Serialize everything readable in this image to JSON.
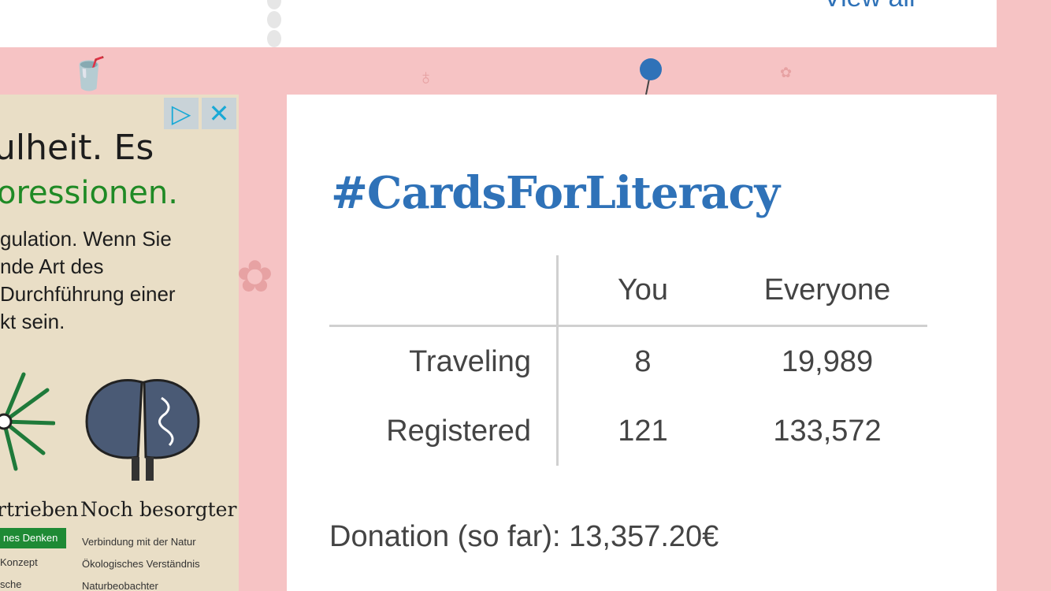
{
  "top_card": {
    "view_all_label": "View all"
  },
  "ad": {
    "headline_1": "ulheit. Es",
    "headline_2": "oressionen.",
    "body_lines": [
      "gulation. Wenn Sie",
      "nde Art des",
      "Durchführung einer",
      "kt sein."
    ],
    "caption_left": "rtrieben",
    "caption_right": "Noch besorgter",
    "left_tag": "nes Denken",
    "left_items": [
      "Konzept",
      "sche"
    ],
    "right_items": [
      "Verbindung mit der Natur",
      "Ökologisches Verständnis",
      "Naturbeobachter"
    ],
    "adchoices_icon": "adchoices-icon",
    "close_icon": "close-icon"
  },
  "card": {
    "title": "#CardsForLiteracy",
    "table": {
      "headers": [
        "",
        "You",
        "Everyone"
      ],
      "rows": [
        {
          "label": "Traveling",
          "you": "8",
          "everyone": "19,989"
        },
        {
          "label": "Registered",
          "you": "121",
          "everyone": "133,572"
        }
      ]
    },
    "donation": "Donation (so far): 13,357.20€"
  },
  "colors": {
    "background": "#f6c3c4",
    "accent": "#2f72b8",
    "pin": "#2f72b8"
  }
}
